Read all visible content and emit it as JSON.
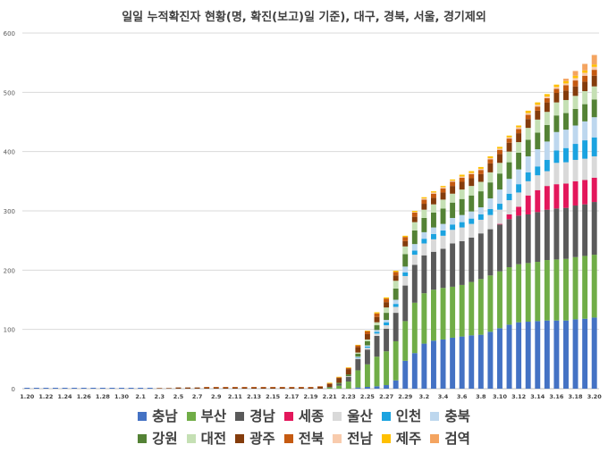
{
  "chart_data": {
    "type": "bar",
    "stacked": true,
    "title": "일일 누적확진자 현황(명, 확진(보고)일 기준), 대구, 경북, 서울, 경기제외",
    "ylim": [
      0,
      600
    ],
    "yticks": [
      0,
      100,
      200,
      300,
      400,
      500,
      600
    ],
    "grid": true,
    "legend_position": "bottom",
    "categories": [
      "1.20",
      "1.21",
      "1.22",
      "1.23",
      "1.24",
      "1.25",
      "1.26",
      "1.27",
      "1.28",
      "1.29",
      "1.30",
      "1.31",
      "2.1",
      "2.2",
      "2.3",
      "2.4",
      "2.5",
      "2.6",
      "2.7",
      "2.8",
      "2.9",
      "2.10",
      "2.11",
      "2.12",
      "2.13",
      "2.14",
      "2.15",
      "2.16",
      "2.17",
      "2.18",
      "2.19",
      "2.20",
      "2.21",
      "2.22",
      "2.23",
      "2.24",
      "2.25",
      "2.26",
      "2.27",
      "2.28",
      "2.29",
      "3.1",
      "3.2",
      "3.3",
      "3.4",
      "3.5",
      "3.6",
      "3.7",
      "3.8",
      "3.9",
      "3.10",
      "3.11",
      "3.12",
      "3.13",
      "3.14",
      "3.15",
      "3.16",
      "3.17",
      "3.18",
      "3.19",
      "3.20"
    ],
    "tick_labels": [
      "1.20",
      "1.22",
      "1.24",
      "1.26",
      "1.28",
      "1.30",
      "2.1",
      "2.3",
      "2.5",
      "2.7",
      "2.9",
      "2.11",
      "2.13",
      "2.15",
      "2.17",
      "2.19",
      "2.21",
      "2.23",
      "2.25",
      "2.27",
      "2.29",
      "3.2",
      "3.4",
      "3.6",
      "3.8",
      "3.10",
      "3.12",
      "3.14",
      "3.16",
      "3.18",
      "3.20"
    ],
    "series": [
      {
        "name": "충남",
        "color": "#4472C4",
        "values": [
          0,
          0,
          0,
          0,
          0,
          0,
          0,
          0,
          0,
          0,
          0,
          0,
          0,
          0,
          0,
          0,
          0,
          0,
          0,
          0,
          0,
          0,
          0,
          0,
          0,
          0,
          0,
          0,
          0,
          0,
          0,
          0,
          0,
          0,
          0,
          2,
          3,
          4,
          6,
          14,
          47,
          60,
          76,
          81,
          83,
          86,
          88,
          90,
          91,
          96,
          102,
          108,
          112,
          113,
          114,
          115,
          115,
          115,
          117,
          118,
          120
        ]
      },
      {
        "name": "부산",
        "color": "#70AD47",
        "values": [
          0,
          0,
          0,
          0,
          0,
          0,
          0,
          0,
          0,
          0,
          0,
          0,
          0,
          0,
          0,
          0,
          0,
          0,
          0,
          0,
          0,
          0,
          0,
          0,
          0,
          0,
          0,
          0,
          0,
          0,
          0,
          0,
          2,
          5,
          12,
          29,
          38,
          50,
          57,
          66,
          67,
          85,
          85,
          86,
          87,
          86,
          87,
          90,
          94,
          95,
          96,
          97,
          98,
          99,
          100,
          102,
          103,
          104,
          105,
          106,
          106
        ]
      },
      {
        "name": "경남",
        "color": "#5A5A5A",
        "values": [
          0,
          0,
          0,
          0,
          0,
          0,
          0,
          0,
          0,
          0,
          0,
          0,
          0,
          0,
          0,
          0,
          0,
          0,
          0,
          0,
          0,
          0,
          0,
          0,
          0,
          0,
          0,
          0,
          0,
          0,
          0,
          0,
          1,
          3,
          8,
          19,
          25,
          35,
          38,
          48,
          60,
          64,
          64,
          64,
          66,
          73,
          74,
          75,
          77,
          78,
          79,
          81,
          82,
          82,
          84,
          85,
          86,
          86,
          87,
          87,
          89
        ]
      },
      {
        "name": "세종",
        "color": "#E3175B",
        "values": [
          0,
          0,
          0,
          0,
          0,
          0,
          0,
          0,
          0,
          0,
          0,
          0,
          0,
          0,
          0,
          0,
          0,
          0,
          0,
          0,
          0,
          0,
          0,
          0,
          0,
          0,
          0,
          0,
          0,
          0,
          0,
          0,
          0,
          0,
          0,
          0,
          0,
          0,
          0,
          0,
          0,
          0,
          0,
          0,
          0,
          0,
          0,
          0,
          0,
          0,
          1,
          8,
          15,
          32,
          37,
          40,
          41,
          41,
          41,
          41,
          41
        ]
      },
      {
        "name": "울산",
        "color": "#D9D9D9",
        "values": [
          0,
          0,
          0,
          0,
          0,
          0,
          0,
          0,
          0,
          0,
          0,
          0,
          0,
          0,
          0,
          0,
          0,
          0,
          0,
          0,
          0,
          0,
          0,
          0,
          0,
          0,
          0,
          0,
          0,
          0,
          0,
          0,
          0,
          0,
          1,
          2,
          3,
          4,
          6,
          10,
          16,
          17,
          20,
          21,
          22,
          23,
          23,
          23,
          23,
          24,
          24,
          24,
          24,
          24,
          25,
          25,
          36,
          36,
          36,
          36,
          36
        ]
      },
      {
        "name": "인천",
        "color": "#1BA3E0",
        "values": [
          0,
          0,
          0,
          0,
          0,
          0,
          0,
          0,
          0,
          0,
          0,
          0,
          0,
          0,
          0,
          0,
          0,
          0,
          0,
          0,
          0,
          0,
          0,
          0,
          0,
          0,
          0,
          0,
          0,
          0,
          0,
          0,
          0,
          0,
          0,
          1,
          2,
          3,
          5,
          5,
          6,
          7,
          8,
          9,
          9,
          9,
          9,
          9,
          9,
          10,
          10,
          11,
          14,
          15,
          15,
          19,
          21,
          24,
          27,
          31,
          32
        ]
      },
      {
        "name": "충북",
        "color": "#BDD7EE",
        "values": [
          0,
          0,
          0,
          0,
          0,
          0,
          0,
          0,
          0,
          0,
          0,
          0,
          0,
          0,
          0,
          0,
          0,
          0,
          0,
          0,
          0,
          0,
          0,
          0,
          0,
          0,
          0,
          0,
          0,
          0,
          0,
          0,
          0,
          0,
          0,
          1,
          2,
          3,
          4,
          7,
          10,
          11,
          11,
          11,
          11,
          11,
          12,
          12,
          12,
          18,
          24,
          25,
          25,
          27,
          29,
          31,
          31,
          31,
          31,
          32,
          34
        ]
      },
      {
        "name": "강원",
        "color": "#548235",
        "values": [
          0,
          0,
          0,
          0,
          0,
          0,
          0,
          0,
          0,
          0,
          0,
          0,
          0,
          0,
          0,
          0,
          0,
          0,
          0,
          0,
          0,
          0,
          0,
          0,
          0,
          0,
          0,
          0,
          0,
          0,
          0,
          0,
          0,
          2,
          3,
          5,
          7,
          8,
          12,
          19,
          21,
          23,
          24,
          25,
          26,
          26,
          27,
          27,
          27,
          27,
          27,
          28,
          28,
          28,
          28,
          28,
          28,
          28,
          28,
          29,
          30
        ]
      },
      {
        "name": "대전",
        "color": "#C5E0B4",
        "values": [
          0,
          0,
          0,
          0,
          0,
          0,
          0,
          0,
          0,
          0,
          0,
          0,
          0,
          0,
          0,
          0,
          0,
          0,
          0,
          0,
          0,
          0,
          0,
          0,
          0,
          0,
          0,
          0,
          0,
          0,
          0,
          0,
          0,
          0,
          0,
          2,
          3,
          5,
          9,
          13,
          13,
          14,
          14,
          14,
          15,
          15,
          16,
          16,
          16,
          17,
          18,
          18,
          18,
          20,
          22,
          22,
          22,
          22,
          22,
          22,
          22
        ]
      },
      {
        "name": "광주",
        "color": "#843C0C",
        "values": [
          0,
          0,
          0,
          0,
          0,
          0,
          0,
          0,
          0,
          0,
          0,
          0,
          0,
          0,
          1,
          1,
          2,
          2,
          2,
          2,
          2,
          2,
          2,
          2,
          2,
          2,
          2,
          2,
          2,
          2,
          2,
          3,
          5,
          8,
          9,
          9,
          9,
          9,
          9,
          9,
          9,
          9,
          10,
          11,
          12,
          13,
          13,
          13,
          13,
          15,
          15,
          15,
          15,
          15,
          15,
          16,
          16,
          16,
          16,
          16,
          18
        ]
      },
      {
        "name": "전북",
        "color": "#C55A11",
        "values": [
          0,
          0,
          0,
          0,
          0,
          0,
          0,
          0,
          0,
          0,
          0,
          0,
          0,
          0,
          0,
          0,
          0,
          0,
          0,
          1,
          1,
          1,
          1,
          1,
          1,
          1,
          1,
          1,
          1,
          1,
          1,
          1,
          1,
          1,
          2,
          3,
          5,
          6,
          6,
          6,
          7,
          7,
          7,
          7,
          7,
          7,
          7,
          7,
          7,
          7,
          7,
          7,
          7,
          7,
          7,
          7,
          7,
          9,
          10,
          10,
          10
        ]
      },
      {
        "name": "전남",
        "color": "#F8CBAD",
        "values": [
          0,
          0,
          0,
          0,
          0,
          0,
          0,
          0,
          0,
          0,
          0,
          0,
          0,
          0,
          0,
          0,
          0,
          0,
          0,
          0,
          0,
          0,
          0,
          0,
          0,
          0,
          0,
          0,
          0,
          0,
          0,
          0,
          0,
          0,
          0,
          0,
          0,
          0,
          0,
          0,
          0,
          1,
          2,
          2,
          2,
          2,
          2,
          2,
          2,
          2,
          2,
          2,
          3,
          3,
          3,
          3,
          3,
          3,
          4,
          5,
          5
        ]
      },
      {
        "name": "제주",
        "color": "#FFC000",
        "values": [
          0,
          0,
          0,
          0,
          0,
          0,
          0,
          0,
          0,
          0,
          0,
          0,
          0,
          0,
          0,
          0,
          0,
          0,
          0,
          0,
          0,
          0,
          0,
          0,
          0,
          0,
          0,
          0,
          0,
          0,
          0,
          0,
          1,
          1,
          1,
          1,
          1,
          2,
          2,
          2,
          2,
          2,
          2,
          2,
          2,
          2,
          3,
          3,
          3,
          3,
          3,
          3,
          3,
          4,
          4,
          4,
          4,
          4,
          4,
          4,
          4
        ]
      },
      {
        "name": "검역",
        "color": "#F4A460",
        "values": [
          0,
          0,
          0,
          0,
          0,
          0,
          0,
          0,
          0,
          0,
          0,
          0,
          0,
          0,
          0,
          0,
          0,
          0,
          0,
          0,
          0,
          0,
          0,
          0,
          0,
          0,
          0,
          0,
          0,
          0,
          0,
          0,
          0,
          0,
          0,
          0,
          0,
          0,
          0,
          0,
          0,
          0,
          0,
          0,
          0,
          0,
          0,
          0,
          0,
          0,
          0,
          0,
          0,
          0,
          0,
          0,
          0,
          4,
          8,
          11,
          16
        ]
      }
    ]
  }
}
